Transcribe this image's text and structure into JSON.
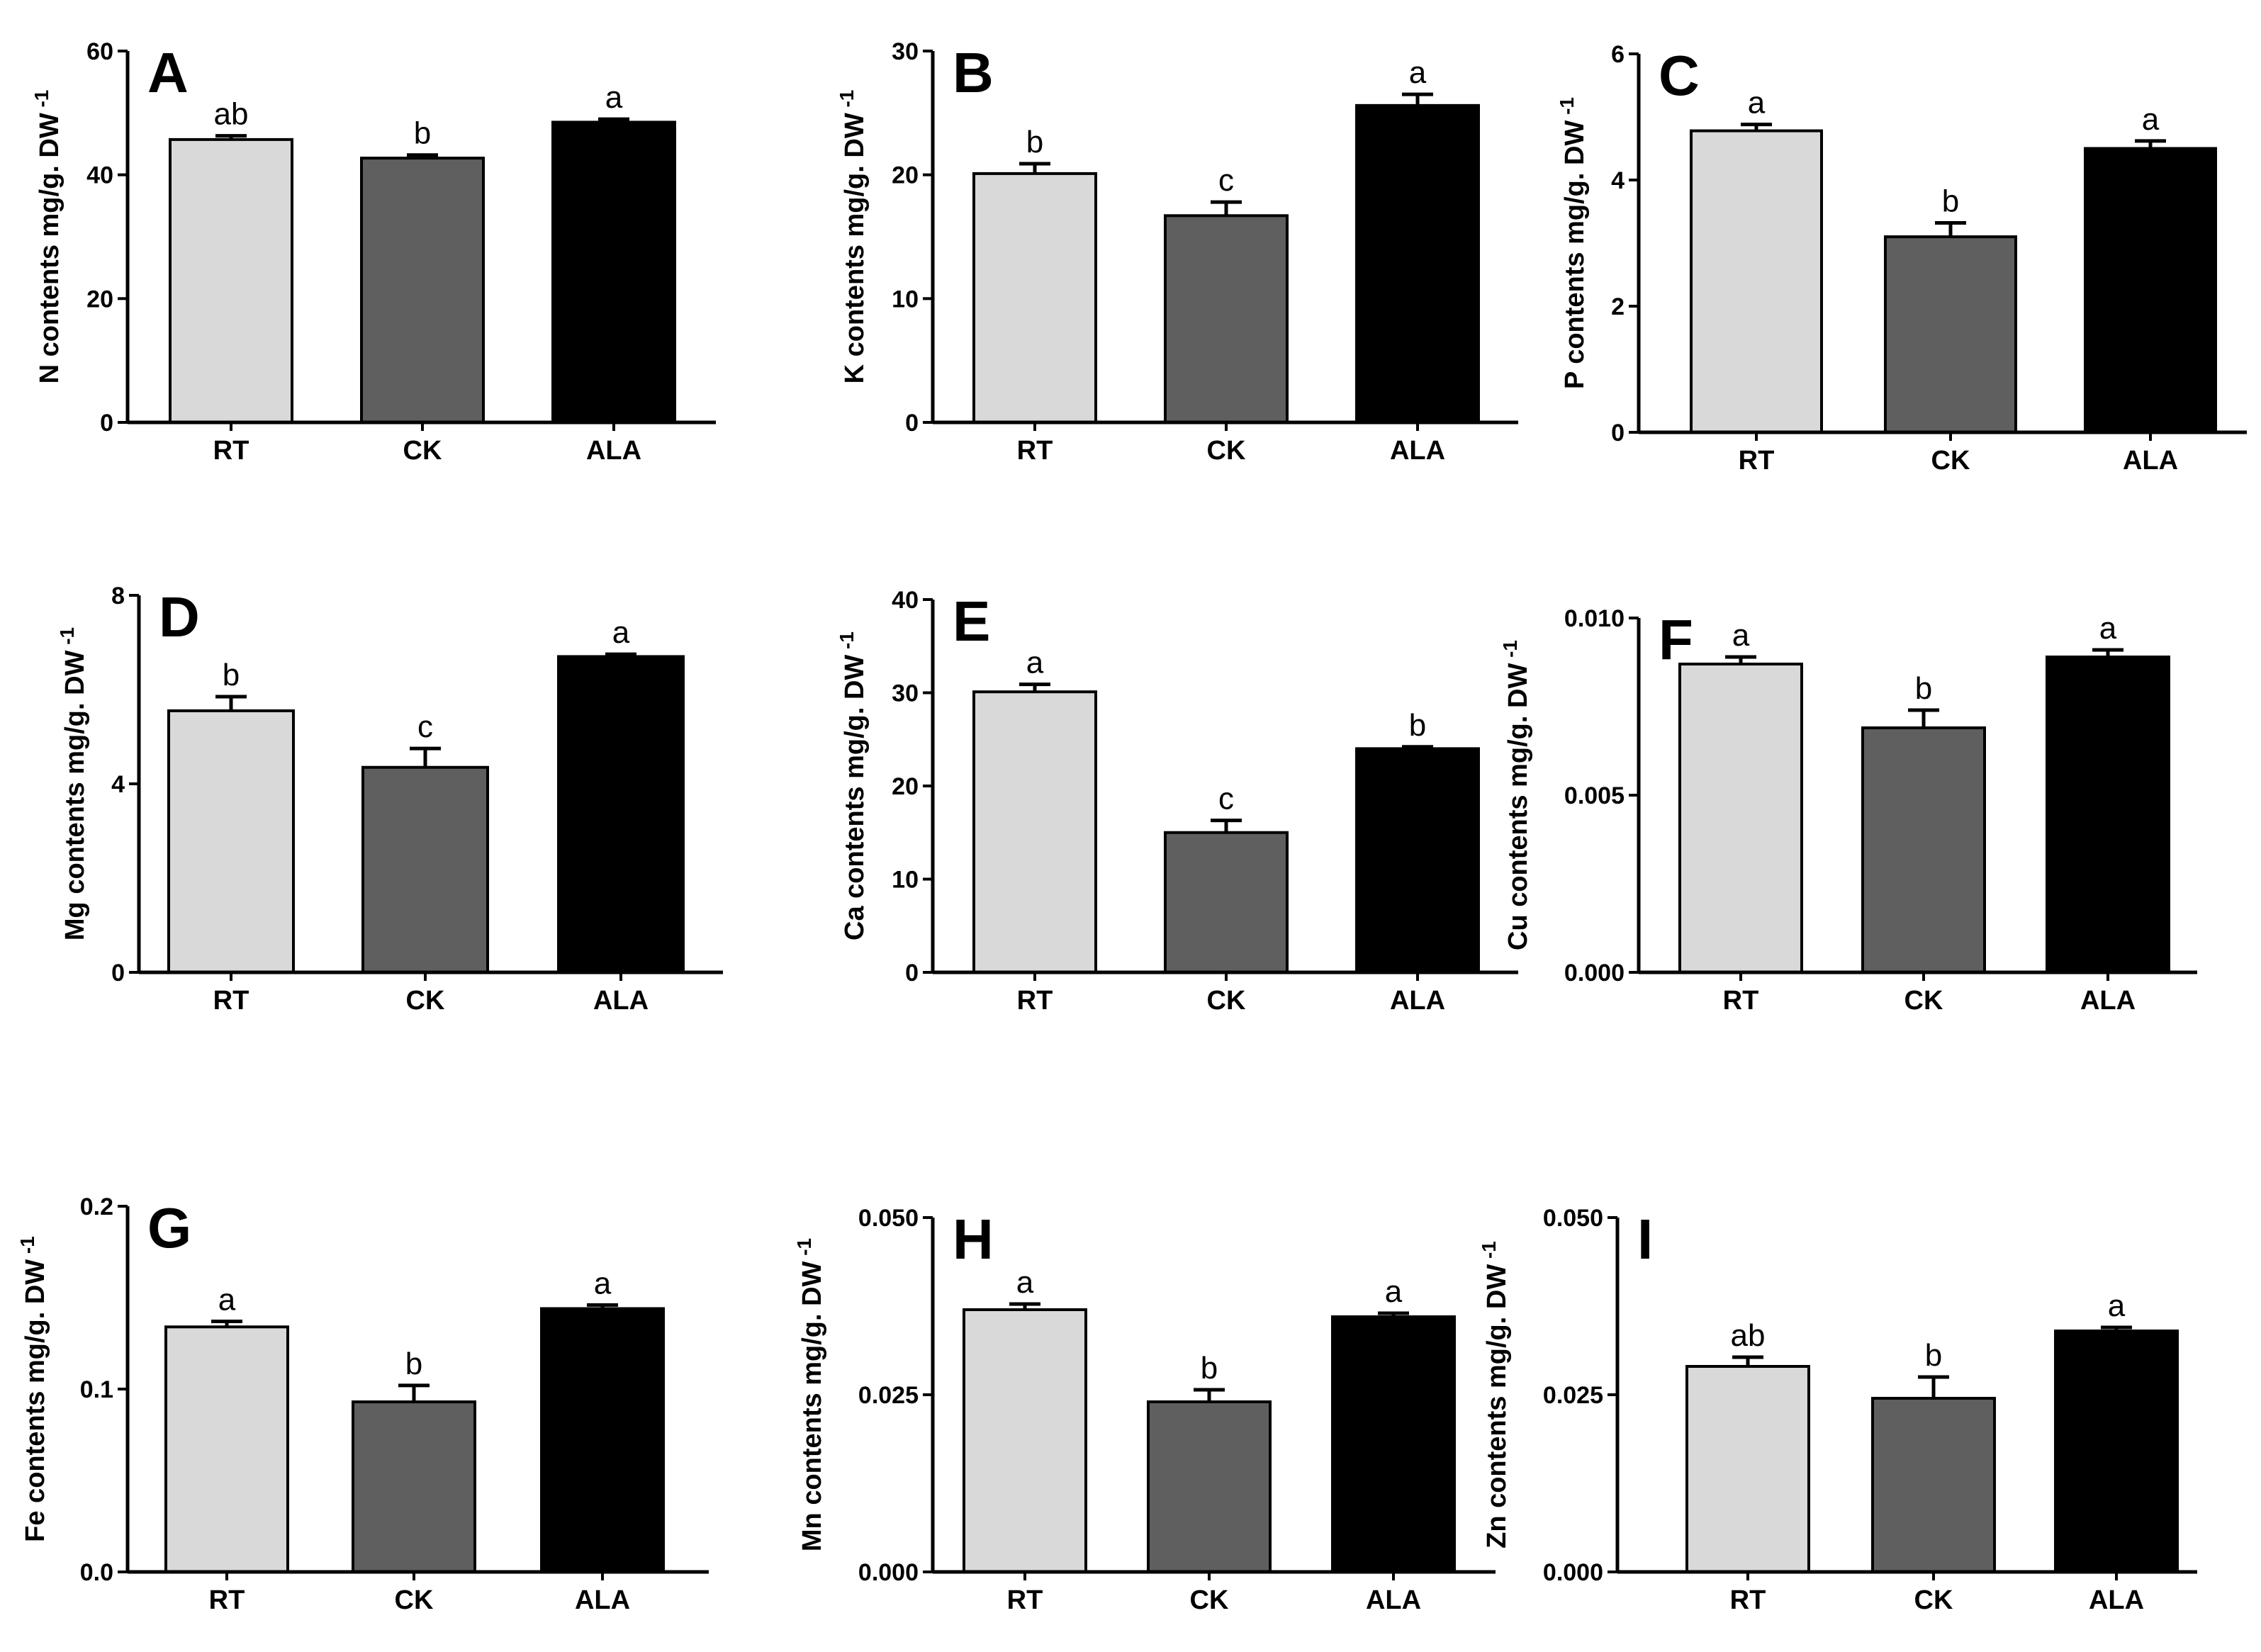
{
  "figure": {
    "palette": {
      "RT": "#d9d9d9",
      "CK": "#5f5f5f",
      "ALA": "#000000"
    },
    "error_bar_color": "#000000",
    "axis_color": "#000000"
  },
  "chart_data": [
    {
      "type": "bar",
      "panel": "A",
      "ylabel": "N contents mg/g. DW",
      "ylabel_superscript": "-1",
      "categories": [
        "RT",
        "CK",
        "ALA"
      ],
      "values": [
        45.7,
        42.7,
        48.5
      ],
      "errors": [
        0.6,
        0.5,
        0.5
      ],
      "significance": [
        "ab",
        "b",
        "a"
      ],
      "ylim": [
        0,
        60
      ],
      "yticks": [
        "0",
        "20",
        "40",
        "60"
      ],
      "ytick_values": [
        0,
        20,
        40,
        60
      ]
    },
    {
      "type": "bar",
      "panel": "B",
      "ylabel": "K contents mg/g. DW",
      "ylabel_superscript": "-1",
      "categories": [
        "RT",
        "CK",
        "ALA"
      ],
      "values": [
        20.1,
        16.7,
        25.6
      ],
      "errors": [
        0.8,
        1.1,
        0.9
      ],
      "significance": [
        "b",
        "c",
        "a"
      ],
      "ylim": [
        0,
        30
      ],
      "yticks": [
        "0",
        "10",
        "20",
        "30"
      ],
      "ytick_values": [
        0,
        10,
        20,
        30
      ]
    },
    {
      "type": "bar",
      "panel": "C",
      "ylabel": "P contents mg/g. DW",
      "ylabel_superscript": "-1",
      "categories": [
        "RT",
        "CK",
        "ALA"
      ],
      "values": [
        4.78,
        3.1,
        4.5
      ],
      "errors": [
        0.1,
        0.22,
        0.12
      ],
      "significance": [
        "a",
        "b",
        "a"
      ],
      "ylim": [
        0,
        6
      ],
      "yticks": [
        "0",
        "2",
        "4",
        "6"
      ],
      "ytick_values": [
        0,
        2,
        4,
        6
      ]
    },
    {
      "type": "bar",
      "panel": "D",
      "ylabel": "Mg contents mg/g. DW",
      "ylabel_superscript": "-1",
      "categories": [
        "RT",
        "CK",
        "ALA"
      ],
      "values": [
        5.55,
        4.35,
        6.7
      ],
      "errors": [
        0.3,
        0.4,
        0.05
      ],
      "significance": [
        "b",
        "c",
        "a"
      ],
      "ylim": [
        0,
        8
      ],
      "yticks": [
        "0",
        "4",
        "8"
      ],
      "ytick_values": [
        0,
        4,
        8
      ]
    },
    {
      "type": "bar",
      "panel": "E",
      "ylabel": "Ca contents mg/g. DW",
      "ylabel_superscript": "-1",
      "categories": [
        "RT",
        "CK",
        "ALA"
      ],
      "values": [
        30.1,
        15.0,
        24.0
      ],
      "errors": [
        0.8,
        1.3,
        0.2
      ],
      "significance": [
        "a",
        "c",
        "b"
      ],
      "ylim": [
        0,
        40
      ],
      "yticks": [
        "0",
        "10",
        "20",
        "30",
        "40"
      ],
      "ytick_values": [
        0,
        10,
        20,
        30,
        40
      ]
    },
    {
      "type": "bar",
      "panel": "F",
      "ylabel": "Cu contents mg/g. DW",
      "ylabel_superscript": "-1",
      "categories": [
        "RT",
        "CK",
        "ALA"
      ],
      "values": [
        0.0087,
        0.0069,
        0.0089
      ],
      "errors": [
        0.0002,
        0.0005,
        0.0002
      ],
      "significance": [
        "a",
        "b",
        "a"
      ],
      "ylim": [
        0,
        0.01
      ],
      "yticks": [
        "0.000",
        "0.005",
        "0.010"
      ],
      "ytick_values": [
        0,
        0.005,
        0.01
      ]
    },
    {
      "type": "bar",
      "panel": "G",
      "ylabel": "Fe contents mg/g. DW",
      "ylabel_superscript": "-1",
      "categories": [
        "RT",
        "CK",
        "ALA"
      ],
      "values": [
        0.134,
        0.093,
        0.144
      ],
      "errors": [
        0.003,
        0.009,
        0.002
      ],
      "significance": [
        "a",
        "b",
        "a"
      ],
      "ylim": [
        0,
        0.2
      ],
      "yticks": [
        "0.0",
        "0.1",
        "0.2"
      ],
      "ytick_values": [
        0,
        0.1,
        0.2
      ]
    },
    {
      "type": "bar",
      "panel": "H",
      "ylabel": "Mn contents mg/g. DW",
      "ylabel_superscript": "-1",
      "categories": [
        "RT",
        "CK",
        "ALA"
      ],
      "values": [
        0.037,
        0.024,
        0.036
      ],
      "errors": [
        0.0008,
        0.0017,
        0.0005
      ],
      "significance": [
        "a",
        "b",
        "a"
      ],
      "ylim": [
        0,
        0.05
      ],
      "yticks": [
        "0.000",
        "0.025",
        "0.050"
      ],
      "ytick_values": [
        0,
        0.025,
        0.05
      ]
    },
    {
      "type": "bar",
      "panel": "I",
      "ylabel": "Zn contents mg/g. DW",
      "ylabel_superscript": "-1",
      "categories": [
        "RT",
        "CK",
        "ALA"
      ],
      "values": [
        0.029,
        0.0245,
        0.034
      ],
      "errors": [
        0.0013,
        0.003,
        0.0005
      ],
      "significance": [
        "ab",
        "b",
        "a"
      ],
      "ylim": [
        0,
        0.05
      ],
      "yticks": [
        "0.000",
        "0.025",
        "0.050"
      ],
      "ytick_values": [
        0,
        0.025,
        0.05
      ]
    }
  ]
}
